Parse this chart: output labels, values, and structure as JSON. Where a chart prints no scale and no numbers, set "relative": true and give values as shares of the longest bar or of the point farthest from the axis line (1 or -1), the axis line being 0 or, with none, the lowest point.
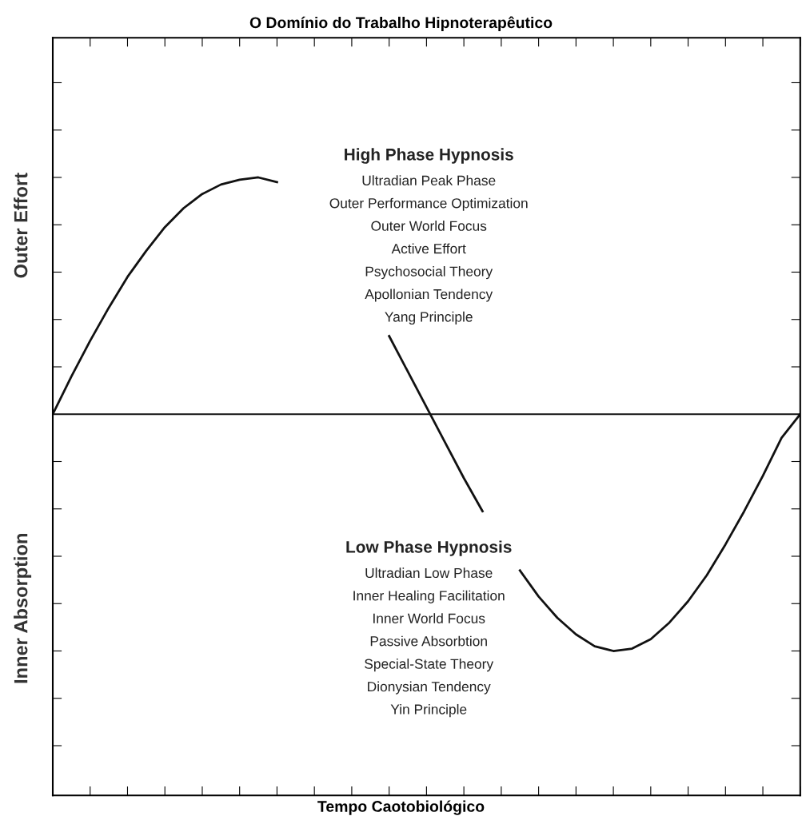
{
  "chart_data": {
    "type": "line",
    "title": "O Domínio do Trabalho Hipnoterapêutico",
    "ylabel": "Outer Effort",
    "relative": true,
    "tick_labels": false,
    "grid": false,
    "legend": false,
    "categories": [
      null,
      null,
      null,
      null,
      null,
      null,
      null,
      null,
      null,
      null,
      null,
      null,
      null,
      null,
      null,
      null,
      null,
      null,
      null,
      null,
      null,
      null,
      null,
      null,
      null,
      null,
      null,
      null,
      null,
      null,
      null,
      null,
      null,
      null,
      null,
      null,
      null,
      null,
      null,
      null,
      null
    ],
    "series": [
      {
        "color": "#111111",
        "values": [
          0,
          0.16,
          0.31,
          0.45,
          0.58,
          0.69,
          0.79,
          0.87,
          0.93,
          0.97,
          0.99,
          1.0,
          0.98,
          null,
          null,
          null,
          null,
          null,
          0.33,
          0.18,
          0.03,
          -0.12,
          -0.27,
          -0.41,
          null,
          -0.66,
          -0.77,
          -0.86,
          -0.93,
          -0.98,
          -1.0,
          -0.99,
          -0.95,
          -0.88,
          -0.79,
          -0.68,
          -0.55,
          -0.41,
          -0.26,
          -0.1,
          0
        ]
      }
    ],
    "annotations": [
      "High Phase Hypnosis",
      "Ultradian Peak Phase",
      "Outer Performance Optimization",
      "Outer World Focus",
      "Active Effort",
      "Psychosocial Theory",
      "Apollonian Tendency",
      "Yang Principle",
      "Low Phase Hypnosis",
      "Ultradian Low Phase",
      "Inner Healing Facilitation",
      "Inner World Focus",
      "Passive Absorbtion",
      "Special-State Theory",
      "Dionysian Tendency",
      "Yin Principle",
      "Inner Absorption",
      "Tempo Caotobiológico"
    ]
  }
}
